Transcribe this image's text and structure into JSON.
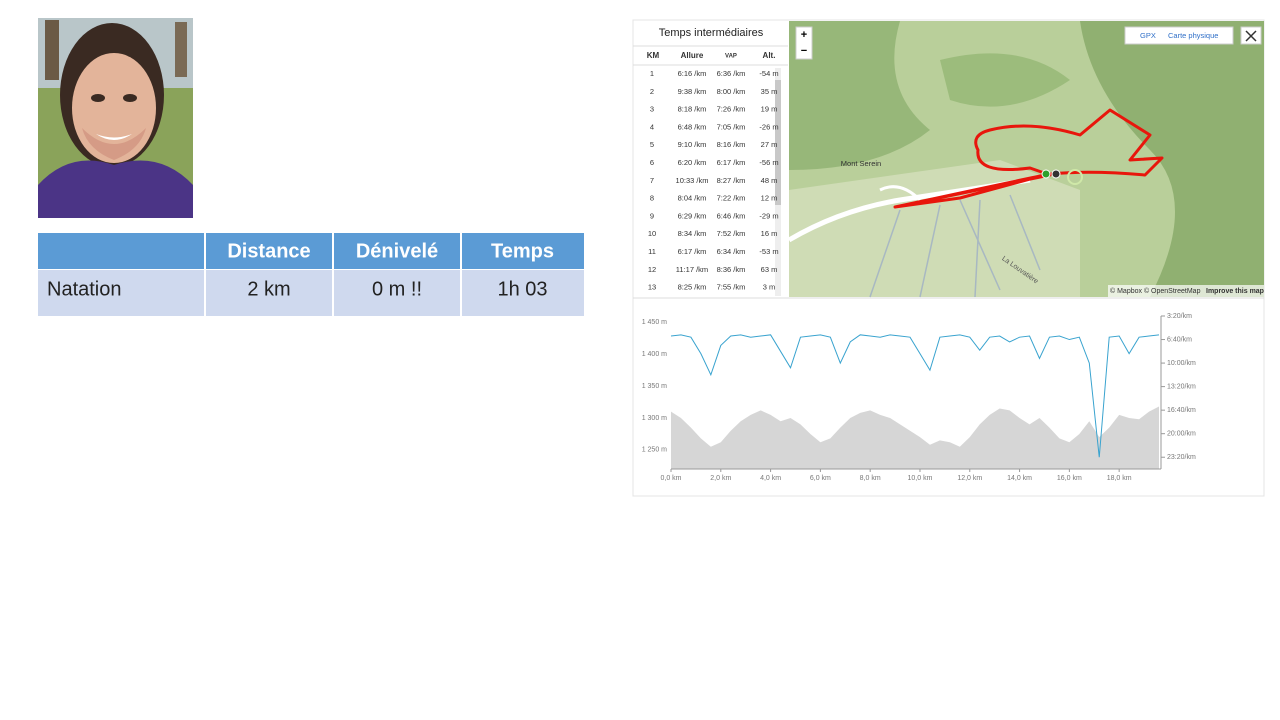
{
  "slide": {
    "table": {
      "header": [
        "Distance",
        "Dénivelé",
        "Temps"
      ],
      "rows": [
        [
          "Natation",
          "2 km",
          "0 m !!",
          "1h 03"
        ]
      ]
    }
  },
  "splits": {
    "title": "Temps intermédiaires",
    "header": [
      "KM",
      "Allure",
      "VAP",
      "Alt."
    ],
    "rows": [
      [
        "1",
        "6:16 /km",
        "6:36 /km",
        "-54 m"
      ],
      [
        "2",
        "9:38 /km",
        "8:00 /km",
        "35 m"
      ],
      [
        "3",
        "8:18 /km",
        "7:26 /km",
        "19 m"
      ],
      [
        "4",
        "6:48 /km",
        "7:05 /km",
        "-26 m"
      ],
      [
        "5",
        "9:10 /km",
        "8:16 /km",
        "27 m"
      ],
      [
        "6",
        "6:20 /km",
        "6:17 /km",
        "-56 m"
      ],
      [
        "7",
        "10:33 /km",
        "8:27 /km",
        "48 m"
      ],
      [
        "8",
        "8:04 /km",
        "7:22 /km",
        "12 m"
      ],
      [
        "9",
        "6:29 /km",
        "6:46 /km",
        "-29 m"
      ],
      [
        "10",
        "8:34 /km",
        "7:52 /km",
        "16 m"
      ],
      [
        "11",
        "6:17 /km",
        "6:34 /km",
        "-53 m"
      ],
      [
        "12",
        "11:17 /km",
        "8:36 /km",
        "63 m"
      ],
      [
        "13",
        "8:25 /km",
        "7:55 /km",
        "3 m"
      ]
    ]
  },
  "map": {
    "zoom_in": "+",
    "zoom_out": "−",
    "gpx": "GPX",
    "layer": "Carte physique",
    "place": "Mont Serein",
    "road": "La Louvatière",
    "credits": "© Mapbox © OpenStreetMap",
    "improve": "Improve this map"
  },
  "chart_data": {
    "type": "line",
    "x": [
      0,
      0.4,
      0.8,
      1.2,
      1.6,
      2.0,
      2.4,
      2.8,
      3.2,
      3.6,
      4.0,
      4.4,
      4.8,
      5.2,
      5.6,
      6.0,
      6.4,
      6.8,
      7.2,
      7.6,
      8.0,
      8.4,
      8.8,
      9.2,
      9.6,
      10.0,
      10.4,
      10.8,
      11.2,
      11.6,
      12.0,
      12.4,
      12.8,
      13.2,
      13.6,
      14.0,
      14.4,
      14.8,
      15.2,
      15.6,
      16.0,
      16.4,
      16.8,
      17.2,
      17.6,
      18.0,
      18.4,
      18.8,
      19.2,
      19.6
    ],
    "series": [
      {
        "type": "area",
        "color": "#d6d6d6",
        "values": [
          1310,
          1300,
          1285,
          1268,
          1255,
          1262,
          1280,
          1295,
          1305,
          1312,
          1305,
          1295,
          1300,
          1290,
          1275,
          1262,
          1268,
          1285,
          1300,
          1308,
          1312,
          1305,
          1300,
          1290,
          1280,
          1270,
          1258,
          1265,
          1262,
          1255,
          1270,
          1290,
          1305,
          1315,
          1312,
          1300,
          1290,
          1300,
          1285,
          1268,
          1262,
          1275,
          1295,
          1270,
          1285,
          1305,
          1300,
          1298,
          1310,
          1318
        ]
      },
      {
        "type": "line",
        "color": "#39a3cf",
        "axis": "y2",
        "values": [
          370,
          360,
          380,
          520,
          700,
          450,
          370,
          360,
          380,
          370,
          360,
          500,
          640,
          380,
          370,
          360,
          380,
          600,
          420,
          360,
          370,
          380,
          360,
          370,
          380,
          520,
          660,
          380,
          370,
          360,
          380,
          490,
          380,
          370,
          420,
          380,
          370,
          560,
          380,
          370,
          400,
          380,
          600,
          1400,
          380,
          370,
          520,
          380,
          370,
          360
        ]
      }
    ],
    "xlim": [
      0,
      19.6
    ],
    "xticks": [
      {
        "value": 0,
        "label": "0,0 km"
      },
      {
        "value": 2,
        "label": "2,0 km"
      },
      {
        "value": 4,
        "label": "4,0 km"
      },
      {
        "value": 6,
        "label": "6,0 km"
      },
      {
        "value": 8,
        "label": "8,0 km"
      },
      {
        "value": 10,
        "label": "10,0 km"
      },
      {
        "value": 12,
        "label": "12,0 km"
      },
      {
        "value": 14,
        "label": "14,0 km"
      },
      {
        "value": 16,
        "label": "16,0 km"
      },
      {
        "value": 18,
        "label": "18,0 km"
      }
    ],
    "ylim": [
      1220,
      1460
    ],
    "yticks": [
      {
        "value": 1250,
        "label": "1 250 m"
      },
      {
        "value": 1300,
        "label": "1 300 m"
      },
      {
        "value": 1350,
        "label": "1 350 m"
      },
      {
        "value": 1400,
        "label": "1 400 m"
      },
      {
        "value": 1450,
        "label": "1 450 m"
      }
    ],
    "y2lim": [
      1500,
      200
    ],
    "y2ticks": [
      {
        "value": 200,
        "label": "3:20/km"
      },
      {
        "value": 400,
        "label": "6:40/km"
      },
      {
        "value": 600,
        "label": "10:00/km"
      },
      {
        "value": 800,
        "label": "13:20/km"
      },
      {
        "value": 1000,
        "label": "16:40/km"
      },
      {
        "value": 1200,
        "label": "20:00/km"
      },
      {
        "value": 1400,
        "label": "23:20/km"
      }
    ]
  }
}
